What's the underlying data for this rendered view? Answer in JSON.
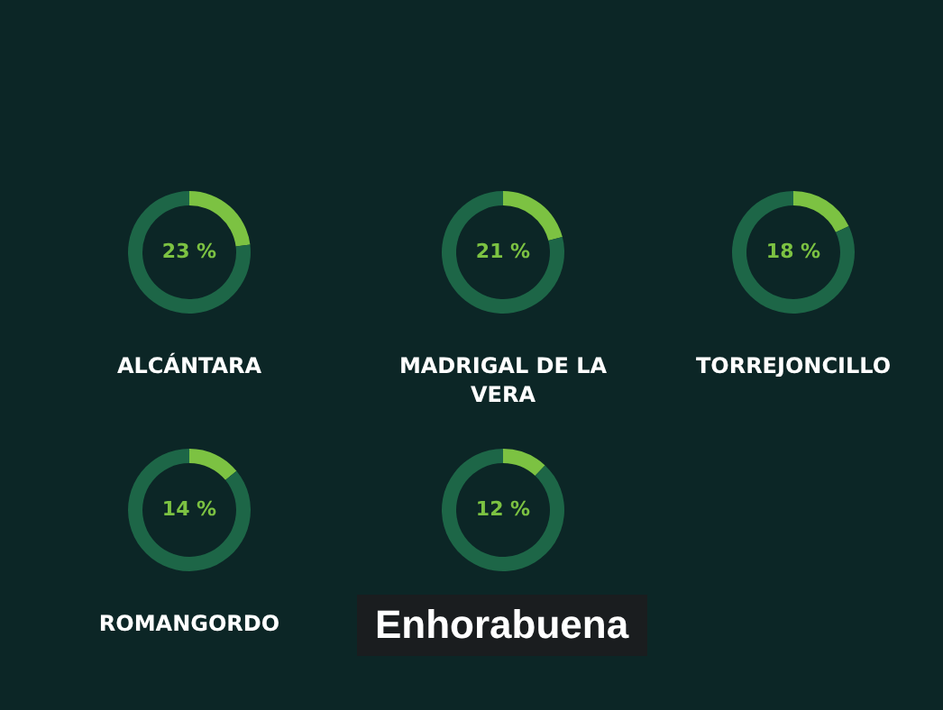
{
  "chart_data": [
    {
      "type": "donut",
      "title": "ALCÁNTARA",
      "categories": [
        null,
        null
      ],
      "values": [
        23,
        77
      ],
      "colors": [
        "#7cc242",
        "#1d6647"
      ],
      "value_labels": [
        "23 %",
        null
      ]
    },
    {
      "type": "donut",
      "title": "MADRIGAL DE LA VERA",
      "categories": [
        null,
        null
      ],
      "values": [
        21,
        79
      ],
      "colors": [
        "#7cc242",
        "#1d6647"
      ],
      "value_labels": [
        "21 %",
        null
      ]
    },
    {
      "type": "donut",
      "title": "TORREJONCILLO",
      "categories": [
        null,
        null
      ],
      "values": [
        18,
        82
      ],
      "colors": [
        "#7cc242",
        "#1d6647"
      ],
      "value_labels": [
        "18 %",
        null
      ]
    },
    {
      "type": "donut",
      "title": "ROMANGORDO",
      "categories": [
        null,
        null
      ],
      "values": [
        14,
        86
      ],
      "colors": [
        "#7cc242",
        "#1d6647"
      ],
      "value_labels": [
        "14 %",
        null
      ]
    },
    {
      "type": "donut",
      "categories": [
        null,
        null
      ],
      "values": [
        12,
        88
      ],
      "colors": [
        "#7cc242",
        "#1d6647"
      ],
      "value_labels": [
        "12 %",
        null
      ],
      "annotations": [
        "Enhorabuena"
      ]
    }
  ]
}
